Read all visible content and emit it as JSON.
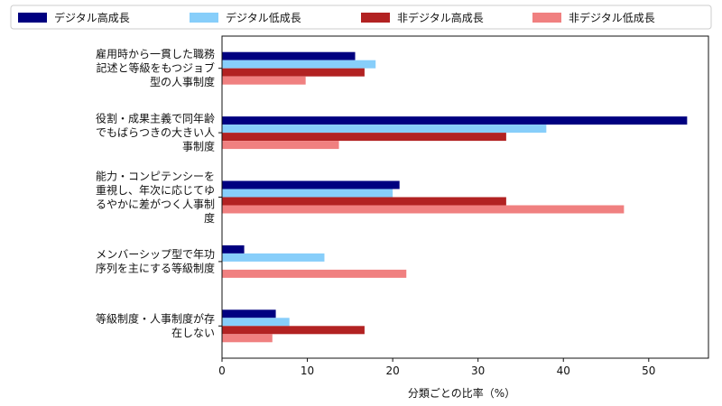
{
  "chart_data": {
    "type": "bar",
    "orientation": "horizontal",
    "categories": [
      [
        "雇用時から一貫した職務",
        "記述と等級をもつジョブ",
        "型の人事制度"
      ],
      [
        "役割・成果主義で同年齢",
        "でもばらつきの大きい人",
        "事制度"
      ],
      [
        "能力・コンピテンシーを",
        "重視し、年次に応じてゆ",
        "るやかに差がつく人事制",
        "度"
      ],
      [
        "メンバーシップ型で年功",
        "序列を主にする等級制度"
      ],
      [
        "等級制度・人事制度が存",
        "在しない"
      ]
    ],
    "series": [
      {
        "name": "デジタル高成長",
        "color": "#000080",
        "values": [
          15.6,
          54.5,
          20.8,
          2.6,
          6.3
        ]
      },
      {
        "name": "デジタル低成長",
        "color": "#87cefa",
        "values": [
          18.0,
          38.0,
          20.0,
          12.0,
          7.9
        ]
      },
      {
        "name": "非デジタル高成長",
        "color": "#b22222",
        "values": [
          16.7,
          33.3,
          33.3,
          0,
          16.7
        ]
      },
      {
        "name": "非デジタル低成長",
        "color": "#f08080",
        "values": [
          9.8,
          13.7,
          47.1,
          21.6,
          5.9
        ]
      }
    ],
    "xlabel": "分類ごとの比率（%）",
    "xlim": [
      0,
      57
    ],
    "xticks": [
      0,
      10,
      20,
      30,
      40,
      50
    ],
    "legend_position": "top",
    "grid": false
  }
}
